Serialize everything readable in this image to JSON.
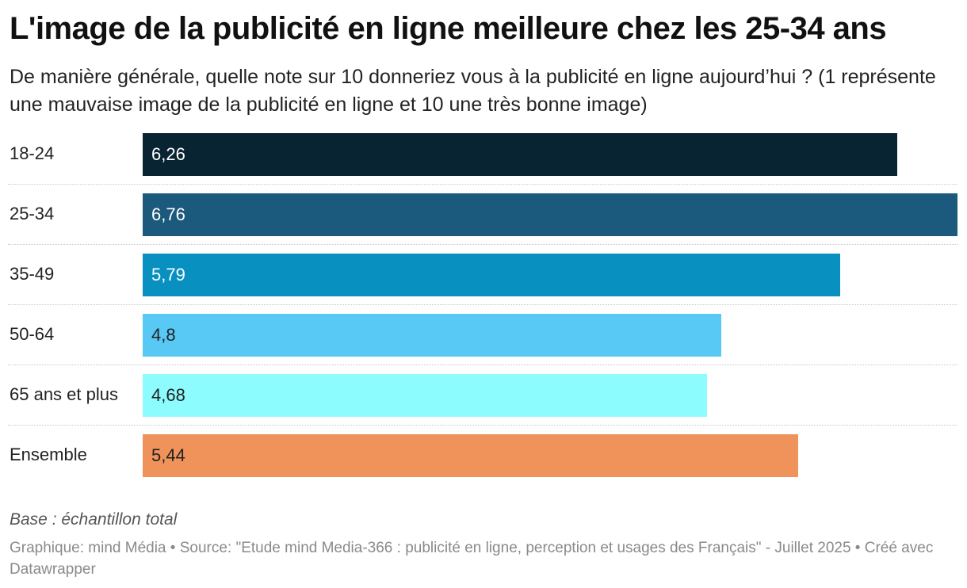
{
  "title": "L'image de la publicité en ligne meilleure chez les 25-34 ans",
  "subtitle": "De manière générale, quelle note sur 10 donneriez vous à la publicité en ligne aujourd’hui ? (1 représente une mauvaise image de la publicité en ligne et 10 une très bonne image)",
  "chart_data": {
    "type": "bar",
    "orientation": "horizontal",
    "title": "L'image de la publicité en ligne meilleure chez les 25-34 ans",
    "xlabel": "",
    "ylabel": "",
    "xlim": [
      0,
      6.76
    ],
    "categories": [
      "18-24",
      "25-34",
      "35-49",
      "50-64",
      "65 ans et plus",
      "Ensemble"
    ],
    "values": [
      6.26,
      6.76,
      5.79,
      4.8,
      4.68,
      5.44
    ],
    "value_labels": [
      "6,26",
      "6,76",
      "5,79",
      "4,8",
      "4,68",
      "5,44"
    ],
    "colors": [
      "#082433",
      "#1b5a7c",
      "#0891c0",
      "#58c8f4",
      "#8cfcff",
      "#f0935a"
    ],
    "label_colors": [
      "#ffffff",
      "#ffffff",
      "#ffffff",
      "#222222",
      "#222222",
      "#222222"
    ]
  },
  "note": "Base : échantillon total",
  "footer": "Graphique: mind Média • Source: \"Etude mind Media-366 : publicité en ligne, perception et usages des Français\" - Juillet 2025 • Créé avec Datawrapper"
}
